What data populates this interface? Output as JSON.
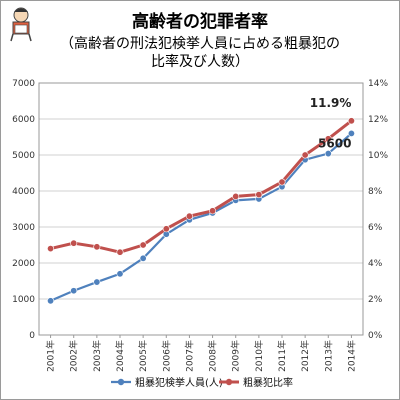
{
  "chart_data": {
    "type": "line",
    "title": "高齢者の犯罪者率",
    "subtitle_line1": "（高齢者の刑法犯検挙人員に占める粗暴犯の",
    "subtitle_line2": "比率及び人数）",
    "categories": [
      "2001年",
      "2002年",
      "2003年",
      "2004年",
      "2005年",
      "2006年",
      "2007年",
      "2008年",
      "2009年",
      "2010年",
      "2011年",
      "2012年",
      "2013年",
      "2014年"
    ],
    "y_left": {
      "min": 0,
      "max": 7000,
      "step": 1000,
      "ticks": [
        "0",
        "1000",
        "2000",
        "3000",
        "4000",
        "5000",
        "6000",
        "7000"
      ]
    },
    "y_right": {
      "min": 0,
      "max": 14,
      "step": 2,
      "ticks": [
        "0%",
        "2%",
        "4%",
        "6%",
        "8%",
        "10%",
        "12%",
        "14%"
      ]
    },
    "series": [
      {
        "name": "粗暴犯検挙人員(人)",
        "axis": "left",
        "color": "#4f81bd",
        "values": [
          950,
          1230,
          1470,
          1700,
          2130,
          2800,
          3200,
          3390,
          3740,
          3780,
          4120,
          4870,
          5040,
          5600
        ]
      },
      {
        "name": "粗暴犯比率",
        "axis": "right",
        "color": "#c0504d",
        "values": [
          4.8,
          5.1,
          4.9,
          4.6,
          5.0,
          5.9,
          6.6,
          6.9,
          7.7,
          7.8,
          8.5,
          10.0,
          10.9,
          11.9
        ]
      }
    ],
    "annotations": [
      {
        "text": "11.9%",
        "series": 1,
        "index": 13
      },
      {
        "text": "5600",
        "series": 0,
        "index": 13
      }
    ],
    "grid": true,
    "legend": "bottom"
  }
}
